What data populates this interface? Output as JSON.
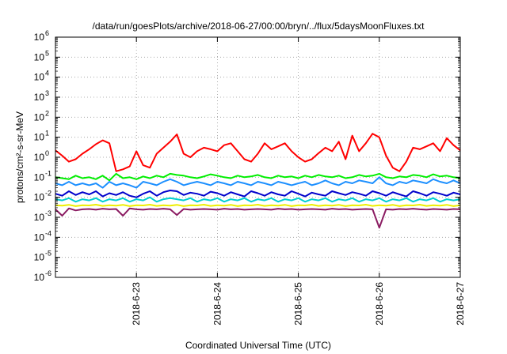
{
  "chart_data": {
    "type": "line",
    "title": "/data/run/goesPlots/archive/2018-06-27/00:00/bryn/../flux/5daysMoonFluxes.txt",
    "xlabel": "Coordinated Universal Time (UTC)",
    "ylabel": "protons/cm²-s-sr-MeV",
    "y_scale": "log",
    "ylim": [
      1e-06,
      1000000.0
    ],
    "xlim": [
      "2018-06-22T00:00",
      "2018-06-27T00:00"
    ],
    "grid": true,
    "legend": "none",
    "y_ticks": [
      {
        "base": "10",
        "exp": "-6",
        "value": 1e-06
      },
      {
        "base": "10",
        "exp": "-5",
        "value": 1e-05
      },
      {
        "base": "10",
        "exp": "-4",
        "value": 0.0001
      },
      {
        "base": "10",
        "exp": "-3",
        "value": 0.001
      },
      {
        "base": "10",
        "exp": "-2",
        "value": 0.01
      },
      {
        "base": "10",
        "exp": "-1",
        "value": 0.1
      },
      {
        "base": "10",
        "exp": "0",
        "value": 1
      },
      {
        "base": "10",
        "exp": "1",
        "value": 10
      },
      {
        "base": "10",
        "exp": "2",
        "value": 100
      },
      {
        "base": "10",
        "exp": "3",
        "value": 1000
      },
      {
        "base": "10",
        "exp": "4",
        "value": 10000
      },
      {
        "base": "10",
        "exp": "5",
        "value": 100000
      },
      {
        "base": "10",
        "exp": "6",
        "value": 1000000
      }
    ],
    "x_ticks": [
      {
        "label": "2018-6-23",
        "value": "2018-06-23T00:00"
      },
      {
        "label": "2018-6-24",
        "value": "2018-06-24T00:00"
      },
      {
        "label": "2018-6-25",
        "value": "2018-06-25T00:00"
      },
      {
        "label": "2018-6-26",
        "value": "2018-06-26T00:00"
      },
      {
        "label": "2018-6-27",
        "value": "2018-06-27T00:00"
      }
    ],
    "series": [
      {
        "color": "#ff0000",
        "y": [
          2.2,
          1.2,
          0.6,
          0.8,
          1.5,
          2.5,
          4.5,
          7,
          5,
          0.2,
          0.25,
          0.35,
          2,
          0.4,
          0.3,
          1.5,
          3,
          6,
          14,
          1.5,
          1,
          2,
          3,
          2.5,
          2,
          4,
          5,
          2,
          0.8,
          0.6,
          1.5,
          5,
          2.5,
          3.5,
          5,
          2,
          1,
          0.6,
          0.8,
          1.6,
          3,
          2,
          6,
          0.8,
          12,
          2,
          5,
          15,
          10,
          1.2,
          0.3,
          0.2,
          0.6,
          3,
          2.5,
          3.5,
          5,
          2,
          9,
          4,
          2.2
        ]
      },
      {
        "color": "#00ee00",
        "y": [
          0.1,
          0.09,
          0.08,
          0.12,
          0.09,
          0.1,
          0.08,
          0.12,
          0.07,
          0.15,
          0.09,
          0.1,
          0.08,
          0.11,
          0.09,
          0.12,
          0.1,
          0.15,
          0.13,
          0.12,
          0.1,
          0.09,
          0.11,
          0.14,
          0.12,
          0.1,
          0.09,
          0.12,
          0.1,
          0.11,
          0.13,
          0.1,
          0.09,
          0.12,
          0.1,
          0.11,
          0.09,
          0.12,
          0.1,
          0.13,
          0.11,
          0.1,
          0.12,
          0.09,
          0.1,
          0.13,
          0.11,
          0.12,
          0.15,
          0.1,
          0.09,
          0.11,
          0.1,
          0.13,
          0.12,
          0.1,
          0.14,
          0.11,
          0.12,
          0.1,
          0.09
        ]
      },
      {
        "color": "#1e90ff",
        "y": [
          0.05,
          0.04,
          0.06,
          0.04,
          0.05,
          0.04,
          0.05,
          0.03,
          0.06,
          0.04,
          0.05,
          0.04,
          0.03,
          0.06,
          0.05,
          0.04,
          0.06,
          0.08,
          0.06,
          0.04,
          0.05,
          0.06,
          0.05,
          0.04,
          0.06,
          0.05,
          0.04,
          0.06,
          0.05,
          0.04,
          0.06,
          0.05,
          0.04,
          0.06,
          0.05,
          0.04,
          0.05,
          0.06,
          0.04,
          0.05,
          0.07,
          0.05,
          0.04,
          0.06,
          0.05,
          0.07,
          0.06,
          0.05,
          0.1,
          0.05,
          0.04,
          0.06,
          0.05,
          0.07,
          0.06,
          0.05,
          0.08,
          0.06,
          0.05,
          0.07,
          0.05
        ]
      },
      {
        "color": "#0000cc",
        "y": [
          0.015,
          0.012,
          0.02,
          0.013,
          0.018,
          0.014,
          0.02,
          0.011,
          0.016,
          0.013,
          0.018,
          0.012,
          0.01,
          0.015,
          0.02,
          0.012,
          0.018,
          0.022,
          0.02,
          0.013,
          0.017,
          0.015,
          0.012,
          0.019,
          0.016,
          0.012,
          0.018,
          0.014,
          0.011,
          0.02,
          0.016,
          0.012,
          0.018,
          0.014,
          0.012,
          0.02,
          0.015,
          0.011,
          0.017,
          0.014,
          0.012,
          0.02,
          0.016,
          0.013,
          0.018,
          0.015,
          0.012,
          0.02,
          0.016,
          0.012,
          0.018,
          0.014,
          0.011,
          0.02,
          0.016,
          0.012,
          0.018,
          0.015,
          0.012,
          0.017,
          0.014
        ]
      },
      {
        "color": "#00ced1",
        "y": [
          0.008,
          0.007,
          0.009,
          0.006,
          0.008,
          0.007,
          0.009,
          0.006,
          0.008,
          0.007,
          0.009,
          0.006,
          0.008,
          0.007,
          0.01,
          0.006,
          0.008,
          0.009,
          0.008,
          0.007,
          0.009,
          0.006,
          0.008,
          0.007,
          0.009,
          0.006,
          0.008,
          0.007,
          0.009,
          0.006,
          0.008,
          0.007,
          0.009,
          0.006,
          0.008,
          0.007,
          0.009,
          0.006,
          0.008,
          0.007,
          0.009,
          0.006,
          0.008,
          0.007,
          0.009,
          0.006,
          0.008,
          0.007,
          0.009,
          0.006,
          0.008,
          0.007,
          0.009,
          0.006,
          0.008,
          0.007,
          0.009,
          0.006,
          0.008,
          0.007,
          0.008
        ]
      },
      {
        "color": "#eeee00",
        "y": [
          0.004,
          0.0038,
          0.0042,
          0.0036,
          0.004,
          0.0039,
          0.0043,
          0.0037,
          0.004,
          0.0038,
          0.0042,
          0.0036,
          0.004,
          0.0039,
          0.0043,
          0.0037,
          0.004,
          0.0038,
          0.0042,
          0.0036,
          0.004,
          0.0039,
          0.0043,
          0.0037,
          0.004,
          0.0038,
          0.0042,
          0.0036,
          0.004,
          0.0039,
          0.0043,
          0.0037,
          0.004,
          0.0038,
          0.0042,
          0.0036,
          0.004,
          0.0039,
          0.0043,
          0.0037,
          0.004,
          0.0038,
          0.0042,
          0.0036,
          0.004,
          0.0039,
          0.0043,
          0.0037,
          0.004,
          0.0038,
          0.0042,
          0.0036,
          0.004,
          0.0039,
          0.0043,
          0.0037,
          0.004,
          0.0038,
          0.0042,
          0.0036,
          0.004
        ]
      },
      {
        "color": "#8b1c62",
        "y": [
          0.0025,
          0.0012,
          0.0028,
          0.0022,
          0.0025,
          0.0026,
          0.0024,
          0.0027,
          0.0025,
          0.0026,
          0.0012,
          0.0028,
          0.0025,
          0.0024,
          0.0026,
          0.0025,
          0.0027,
          0.0025,
          0.0013,
          0.0026,
          0.0024,
          0.0025,
          0.0026,
          0.0025,
          0.0024,
          0.0027,
          0.0025,
          0.0026,
          0.0024,
          0.0025,
          0.0026,
          0.0025,
          0.0024,
          0.0027,
          0.0025,
          0.0026,
          0.0024,
          0.0025,
          0.0026,
          0.0025,
          0.0024,
          0.0027,
          0.0025,
          0.0026,
          0.0024,
          0.0025,
          0.0026,
          0.0025,
          0.0003,
          0.0025,
          0.0024,
          0.0026,
          0.0025,
          0.0027,
          0.0025,
          0.0024,
          0.0026,
          0.0025,
          0.0024,
          0.0026,
          0.0025
        ]
      }
    ]
  }
}
